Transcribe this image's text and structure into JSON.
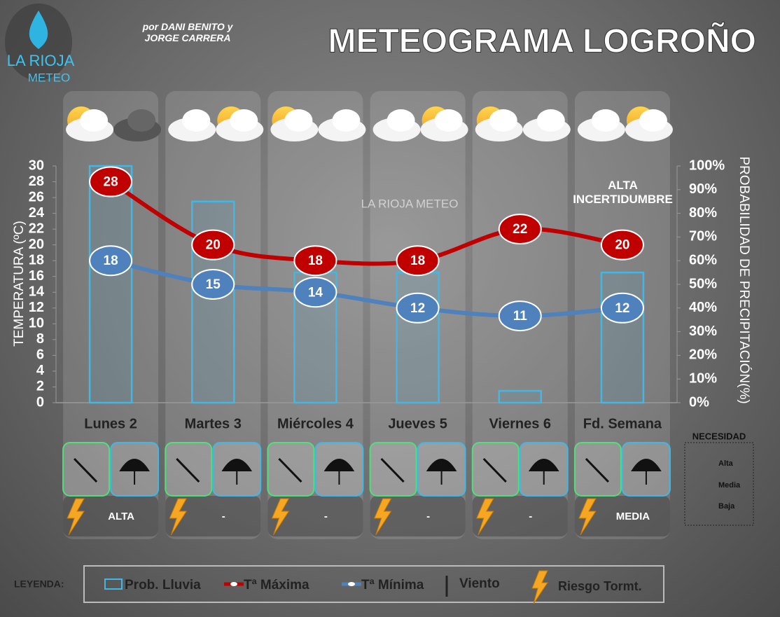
{
  "header": {
    "title": "METEOGRAMA LOGROÑO",
    "subtitle": "por DANI BENITO y JORGE CARRERA",
    "logo_top": "LA RIOJA",
    "logo_bottom": "METEO",
    "watermark": "LA RIOJA METEO"
  },
  "chart_data": {
    "type": "combo",
    "categories": [
      "Lunes 2",
      "Martes 3",
      "Miércoles 4",
      "Jueves 5",
      "Viernes 6",
      "Fd. Semana"
    ],
    "series": [
      {
        "name": "Prob. Lluvia",
        "kind": "bar",
        "axis": "y2",
        "color": "#3fb8e8",
        "values": [
          100,
          85,
          55,
          55,
          5,
          55
        ]
      },
      {
        "name": "Tª Máxima",
        "kind": "line",
        "color": "#c00000",
        "values": [
          28,
          20,
          18,
          18,
          22,
          20
        ]
      },
      {
        "name": "Tª Mínima",
        "kind": "line",
        "color": "#4f81bd",
        "values": [
          18,
          15,
          14,
          12,
          11,
          12
        ]
      }
    ],
    "ylabel": "TEMPERATURA (ºC)",
    "y2label": "PROBABILIDAD DE PRECIPITACIÓN(%)",
    "ylim": [
      0,
      30
    ],
    "yticks": [
      0,
      2,
      4,
      6,
      8,
      10,
      12,
      14,
      16,
      18,
      20,
      22,
      24,
      26,
      28,
      30
    ],
    "y2lim": [
      0,
      100
    ],
    "y2ticks": [
      {
        "value": 0,
        "label": "0%"
      },
      {
        "value": 10,
        "label": "10%"
      },
      {
        "value": 20,
        "label": "20%"
      },
      {
        "value": 30,
        "label": "30%"
      },
      {
        "value": 40,
        "label": "40%"
      },
      {
        "value": 50,
        "label": "50%"
      },
      {
        "value": 60,
        "label": "60%"
      },
      {
        "value": 70,
        "label": "70%"
      },
      {
        "value": 80,
        "label": "80%"
      },
      {
        "value": 90,
        "label": "90%"
      },
      {
        "value": 100,
        "label": "100%"
      }
    ],
    "annotation": "ALTA INCERTIDUMBRE"
  },
  "storm_risk": [
    "ALTA",
    "-",
    "-",
    "-",
    "-",
    "MEDIA"
  ],
  "necesidad": {
    "title": "NECESIDAD",
    "levels": [
      "Alta",
      "Media",
      "Baja"
    ]
  },
  "legend": {
    "label": "LEYENDA:",
    "wind": "Viento",
    "storm": "Riesgo Tormt."
  }
}
